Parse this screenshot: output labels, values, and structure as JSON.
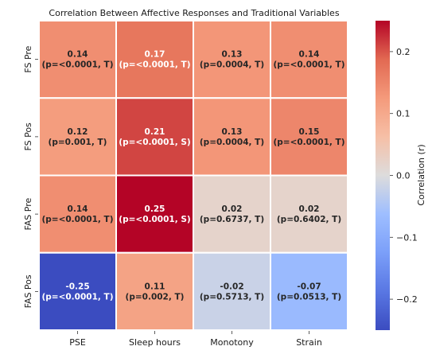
{
  "chart_data": {
    "type": "heatmap",
    "title": "Correlation Between Affective Responses and Traditional Variables",
    "rows": [
      "FS Pre",
      "FS Pos",
      "FAS Pre",
      "FAS Pos"
    ],
    "columns": [
      "PSE",
      "Sleep hours",
      "Monotony",
      "Strain"
    ],
    "values": [
      [
        0.14,
        0.17,
        0.13,
        0.14
      ],
      [
        0.12,
        0.21,
        0.13,
        0.15
      ],
      [
        0.14,
        0.25,
        0.02,
        0.02
      ],
      [
        -0.25,
        0.11,
        -0.02,
        -0.07
      ]
    ],
    "value_labels": [
      [
        "0.14",
        "0.17",
        "0.13",
        "0.14"
      ],
      [
        "0.12",
        "0.21",
        "0.13",
        "0.15"
      ],
      [
        "0.14",
        "0.25",
        "0.02",
        "0.02"
      ],
      [
        "-0.25",
        "0.11",
        "-0.02",
        "-0.07"
      ]
    ],
    "p_labels": [
      [
        "(p=<0.0001, T)",
        "(p=<0.0001, T)",
        "(p=0.0004, T)",
        "(p=<0.0001, T)"
      ],
      [
        "(p=0.001, T)",
        "(p=<0.0001, S)",
        "(p=0.0004, T)",
        "(p=<0.0001, T)"
      ],
      [
        "(p=<0.0001, T)",
        "(p=<0.0001, S)",
        "(p=0.6737, T)",
        "(p=0.6402, T)"
      ],
      [
        "(p=<0.0001, T)",
        "(p=0.002, T)",
        "(p=0.5713, T)",
        "(p=0.0513, T)"
      ]
    ],
    "colorbar": {
      "label": "Correlation (r)",
      "colormap": "coolwarm",
      "vmin": -0.25,
      "vmax": 0.25,
      "ticks": [
        0.2,
        0.1,
        0.0,
        -0.1,
        -0.2
      ],
      "tick_labels": [
        "0.2",
        "0.1",
        "0.0",
        "−0.1",
        "−0.2"
      ]
    }
  }
}
